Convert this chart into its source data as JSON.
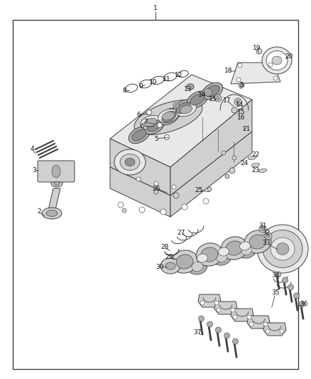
{
  "bg_color": "#ffffff",
  "border_color": "#404040",
  "line_color": "#404040",
  "fig_width": 4.38,
  "fig_height": 5.33,
  "dpi": 100,
  "font_size": 6.5,
  "text_color": "#111111",
  "lw": 0.7
}
